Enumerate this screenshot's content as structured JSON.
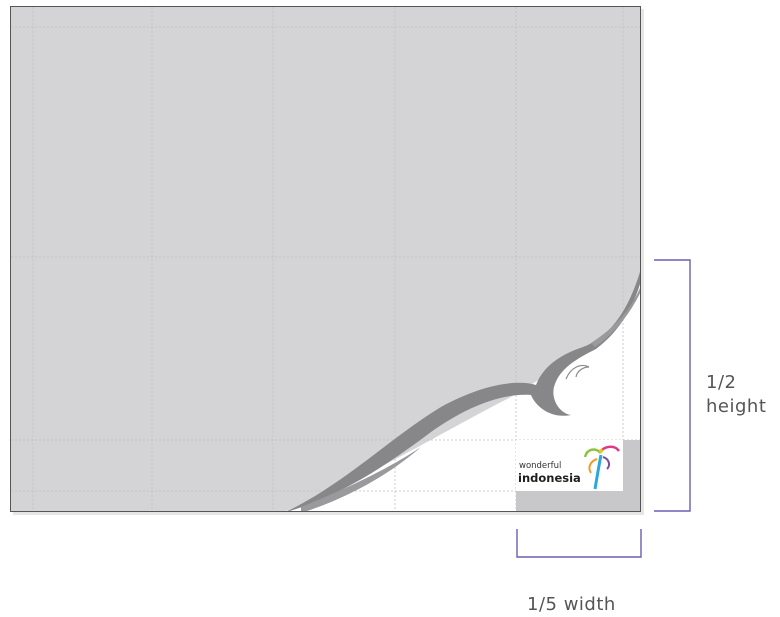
{
  "diagram": {
    "logo": {
      "line1": "wonderful",
      "line2": "indonesia"
    },
    "dimensions": {
      "vertical_label_line1": "1/2",
      "vertical_label_line2": "height",
      "horizontal_label": "1/5 width"
    },
    "colors": {
      "background_panel": "#d4d4d6",
      "swoosh": "#8a8a8c",
      "bracket": "#6b5fb0",
      "label_text": "#555555",
      "gridline": "#c2c2c4"
    }
  }
}
